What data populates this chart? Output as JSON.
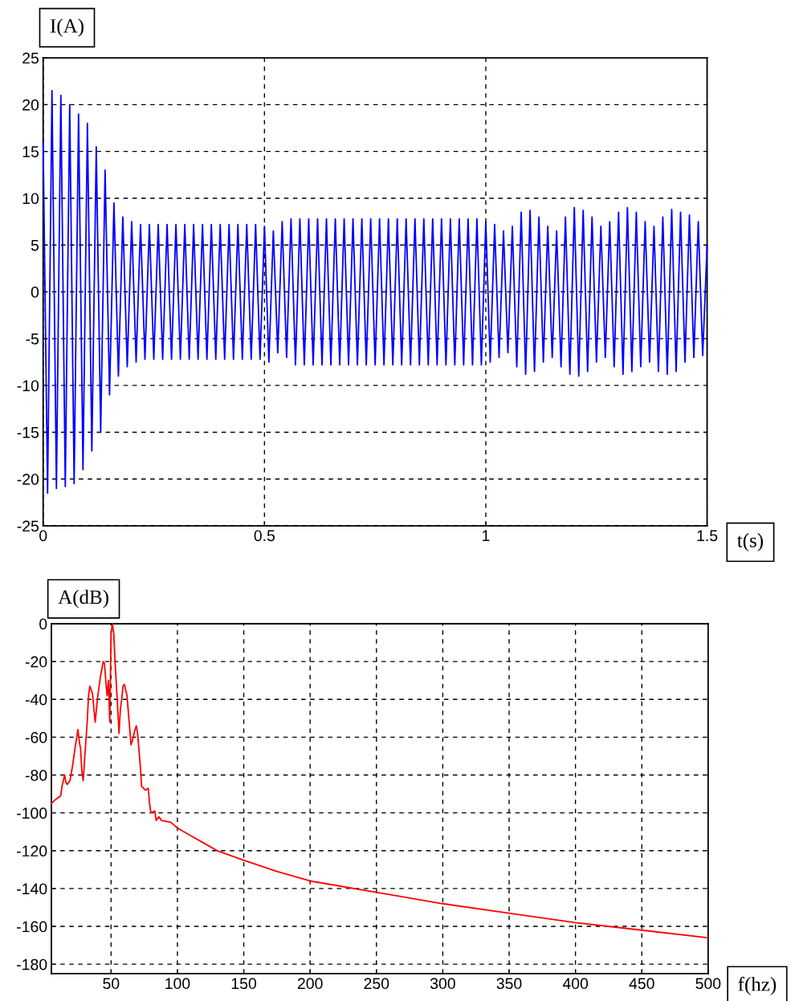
{
  "chart_data": [
    {
      "type": "line",
      "xlabel": "t(s)",
      "ylabel": "I(A)",
      "xlim": [
        0,
        1.5
      ],
      "ylim": [
        -25,
        25
      ],
      "xticks": [
        0,
        0.5,
        1,
        1.5
      ],
      "yticks": [
        -25,
        -20,
        -15,
        -10,
        -5,
        0,
        5,
        10,
        15,
        20,
        25
      ],
      "grid": true,
      "legend": false,
      "series": [
        {
          "color": "#0000ff",
          "x": [
            0,
            0.01,
            0.02,
            0.03,
            0.04,
            0.05,
            0.06,
            0.07,
            0.08,
            0.09,
            0.1,
            0.11,
            0.12,
            0.13,
            0.14,
            0.15,
            0.16,
            0.17,
            0.18,
            0.19,
            0.2,
            0.21,
            0.22,
            0.23,
            0.24,
            0.25,
            0.26,
            0.27,
            0.28,
            0.29,
            0.3,
            0.31,
            0.32,
            0.33,
            0.34,
            0.35,
            0.36,
            0.37,
            0.38,
            0.39,
            0.4,
            0.41,
            0.42,
            0.43,
            0.44,
            0.45,
            0.46,
            0.47,
            0.48,
            0.49,
            0.5,
            0.51,
            0.52,
            0.53,
            0.54,
            0.55,
            0.56,
            0.57,
            0.58,
            0.59,
            0.6,
            0.61,
            0.62,
            0.63,
            0.64,
            0.65,
            0.66,
            0.67,
            0.68,
            0.69,
            0.7,
            0.71,
            0.72,
            0.73,
            0.74,
            0.75,
            0.76,
            0.77,
            0.78,
            0.79,
            0.8,
            0.81,
            0.82,
            0.83,
            0.84,
            0.85,
            0.86,
            0.87,
            0.88,
            0.89,
            0.9,
            0.91,
            0.92,
            0.93,
            0.94,
            0.95,
            0.96,
            0.97,
            0.98,
            0.99,
            1,
            1.01,
            1.02,
            1.03,
            1.04,
            1.05,
            1.06,
            1.07,
            1.08,
            1.09,
            1.1,
            1.11,
            1.12,
            1.13,
            1.14,
            1.15,
            1.16,
            1.17,
            1.18,
            1.19,
            1.2,
            1.21,
            1.22,
            1.23,
            1.24,
            1.25,
            1.26,
            1.27,
            1.28,
            1.29,
            1.3,
            1.31,
            1.32,
            1.33,
            1.34,
            1.35,
            1.36,
            1.37,
            1.38,
            1.39,
            1.4,
            1.41,
            1.42,
            1.43,
            1.44,
            1.45,
            1.46,
            1.47,
            1.48,
            1.49,
            1.5
          ],
          "values": [
            16,
            -21.5,
            21.5,
            -21,
            21,
            -20.8,
            20,
            -20.5,
            19,
            -19,
            18,
            -17,
            15.5,
            -15,
            13,
            -11,
            9.5,
            -9,
            8,
            -8,
            7.5,
            -7.5,
            7.2,
            -7.2,
            7.2,
            -7.2,
            7.2,
            -7.2,
            7.2,
            -7.2,
            7.2,
            -7.2,
            7.2,
            -7.2,
            7.2,
            -7.2,
            7.2,
            -7.2,
            7.2,
            -7.2,
            7.2,
            -7.2,
            7.2,
            -7.2,
            7.2,
            -7.2,
            7.2,
            -7.2,
            7.2,
            -7.2,
            7,
            -7.5,
            6.5,
            -6.5,
            7.5,
            -7,
            7.8,
            -7.8,
            7.8,
            -7.8,
            7.8,
            -7.8,
            7.8,
            -7.8,
            7.8,
            -7.8,
            7.8,
            -7.8,
            7.8,
            -7.8,
            7.8,
            -7.8,
            7.8,
            -7.8,
            7.8,
            -7.8,
            7.8,
            -7.8,
            7.8,
            -7.8,
            7.8,
            -7.8,
            7.8,
            -7.8,
            7.8,
            -7.8,
            7.8,
            -7.8,
            7.8,
            -7.8,
            7.8,
            -7.8,
            7.8,
            -7.8,
            7.8,
            -7.8,
            7.8,
            -7.8,
            7.8,
            -7.8,
            7.5,
            -7.5,
            7.2,
            -7,
            6.5,
            -6.5,
            7,
            -8,
            8.5,
            -8.8,
            8.7,
            -8.5,
            8,
            -7.5,
            7,
            -7,
            6.5,
            -8,
            8,
            -8.8,
            9,
            -9,
            8.7,
            -8.5,
            8,
            -7.5,
            7,
            -7,
            7.5,
            -8,
            8.5,
            -8.8,
            9,
            -8.5,
            8.5,
            -8,
            7.5,
            -7.5,
            7,
            -8.5,
            8,
            -8.8,
            8.8,
            -8.5,
            8.5,
            -7.5,
            8.2,
            -7,
            7.5,
            -6.8,
            5
          ]
        }
      ]
    },
    {
      "type": "line",
      "xlabel": "f(hz)",
      "ylabel": "A(dB)",
      "xlim": [
        5,
        500
      ],
      "ylim": [
        -185,
        0
      ],
      "xticks": [
        50,
        100,
        150,
        200,
        250,
        300,
        350,
        400,
        450,
        500
      ],
      "yticks": [
        -180,
        -160,
        -140,
        -120,
        -100,
        -80,
        -60,
        -40,
        -20,
        0
      ],
      "grid": true,
      "legend": false,
      "series": [
        {
          "color": "#ff0000",
          "x": [
            5,
            8,
            12,
            13,
            15,
            16,
            17,
            19,
            21,
            23,
            25,
            26,
            27,
            28,
            29,
            30,
            32,
            33,
            34,
            36,
            38,
            40,
            42,
            44,
            45,
            46,
            47,
            48,
            49,
            50,
            51,
            52,
            53,
            55,
            56,
            57,
            58,
            59,
            60,
            62,
            64,
            65,
            66,
            68,
            69,
            70,
            72,
            73,
            76,
            78,
            79,
            80,
            83,
            84,
            86,
            88,
            95,
            100,
            110,
            120,
            130,
            150,
            175,
            200,
            250,
            300,
            350,
            400,
            450,
            500
          ],
          "values": [
            -95,
            -93,
            -91,
            -86,
            -80,
            -84,
            -85,
            -83,
            -75,
            -65,
            -56,
            -62,
            -66,
            -78,
            -83,
            -72,
            -52,
            -38,
            -33,
            -37,
            -52,
            -38,
            -28,
            -20,
            -21,
            -30,
            -38,
            -30,
            -52,
            -5,
            0,
            -5,
            -20,
            -45,
            -58,
            -45,
            -40,
            -33,
            -32,
            -38,
            -55,
            -64,
            -62,
            -56,
            -54,
            -58,
            -75,
            -86,
            -88,
            -87,
            -95,
            -100,
            -99,
            -104,
            -102,
            -104,
            -105,
            -108,
            -112,
            -116,
            -120,
            -125,
            -131,
            -136,
            -142,
            -148,
            -153,
            -158,
            -162,
            -166
          ]
        }
      ]
    }
  ]
}
